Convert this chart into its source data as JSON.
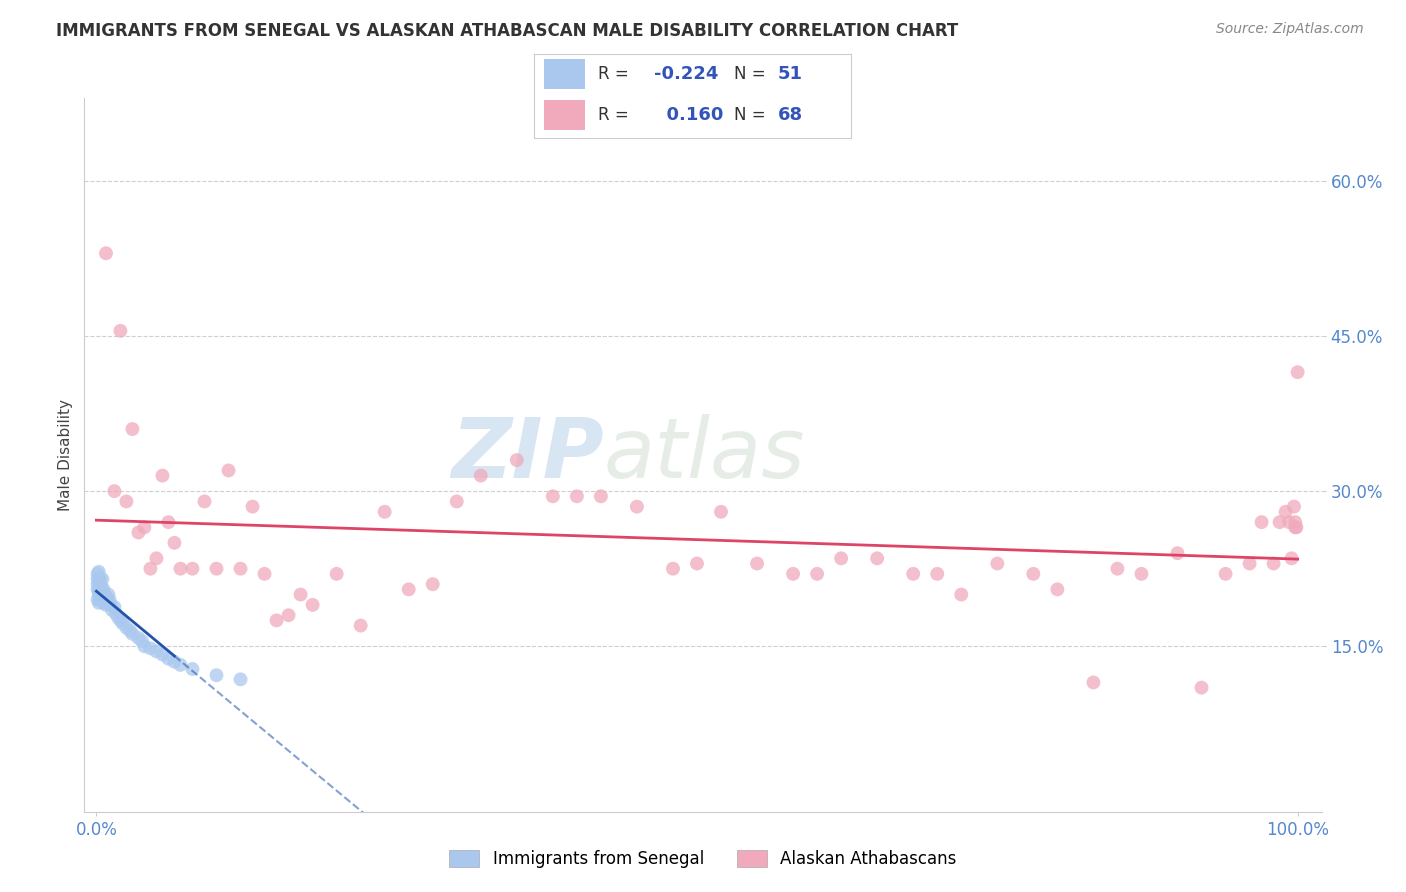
{
  "title": "IMMIGRANTS FROM SENEGAL VS ALASKAN ATHABASCAN MALE DISABILITY CORRELATION CHART",
  "source": "Source: ZipAtlas.com",
  "ylabel": "Male Disability",
  "legend_r_blue": "-0.224",
  "legend_n_blue": "51",
  "legend_r_pink": "0.160",
  "legend_n_pink": "68",
  "blue_color": "#aac8ee",
  "pink_color": "#f0aabb",
  "blue_line_color": "#2255aa",
  "pink_line_color": "#dd4466",
  "watermark_zip": "ZIP",
  "watermark_atlas": "atlas",
  "blue_scatter_x": [
    0.001,
    0.001,
    0.001,
    0.001,
    0.001,
    0.002,
    0.002,
    0.002,
    0.002,
    0.002,
    0.003,
    0.003,
    0.003,
    0.003,
    0.004,
    0.004,
    0.004,
    0.005,
    0.005,
    0.006,
    0.006,
    0.007,
    0.007,
    0.008,
    0.008,
    0.009,
    0.01,
    0.01,
    0.011,
    0.012,
    0.013,
    0.015,
    0.016,
    0.018,
    0.02,
    0.022,
    0.025,
    0.028,
    0.03,
    0.035,
    0.038,
    0.04,
    0.045,
    0.05,
    0.055,
    0.06,
    0.065,
    0.07,
    0.08,
    0.1,
    0.12
  ],
  "blue_scatter_y": [
    0.195,
    0.21,
    0.215,
    0.205,
    0.22,
    0.192,
    0.205,
    0.215,
    0.2,
    0.222,
    0.195,
    0.21,
    0.2,
    0.215,
    0.195,
    0.208,
    0.202,
    0.198,
    0.215,
    0.192,
    0.205,
    0.195,
    0.2,
    0.19,
    0.198,
    0.195,
    0.192,
    0.2,
    0.195,
    0.19,
    0.185,
    0.188,
    0.182,
    0.178,
    0.175,
    0.172,
    0.168,
    0.165,
    0.162,
    0.158,
    0.155,
    0.15,
    0.148,
    0.145,
    0.142,
    0.138,
    0.135,
    0.132,
    0.128,
    0.122,
    0.118
  ],
  "pink_scatter_x": [
    0.008,
    0.015,
    0.02,
    0.025,
    0.03,
    0.035,
    0.04,
    0.045,
    0.05,
    0.055,
    0.06,
    0.065,
    0.07,
    0.08,
    0.09,
    0.1,
    0.11,
    0.12,
    0.13,
    0.14,
    0.15,
    0.16,
    0.17,
    0.18,
    0.2,
    0.22,
    0.24,
    0.26,
    0.28,
    0.3,
    0.32,
    0.35,
    0.38,
    0.4,
    0.42,
    0.45,
    0.48,
    0.5,
    0.52,
    0.55,
    0.58,
    0.6,
    0.62,
    0.65,
    0.68,
    0.7,
    0.72,
    0.75,
    0.78,
    0.8,
    0.83,
    0.85,
    0.87,
    0.9,
    0.92,
    0.94,
    0.96,
    0.97,
    0.98,
    0.985,
    0.99,
    0.993,
    0.995,
    0.997,
    0.998,
    0.999,
    1.0,
    0.998
  ],
  "pink_scatter_y": [
    0.53,
    0.3,
    0.455,
    0.29,
    0.36,
    0.26,
    0.265,
    0.225,
    0.235,
    0.315,
    0.27,
    0.25,
    0.225,
    0.225,
    0.29,
    0.225,
    0.32,
    0.225,
    0.285,
    0.22,
    0.175,
    0.18,
    0.2,
    0.19,
    0.22,
    0.17,
    0.28,
    0.205,
    0.21,
    0.29,
    0.315,
    0.33,
    0.295,
    0.295,
    0.295,
    0.285,
    0.225,
    0.23,
    0.28,
    0.23,
    0.22,
    0.22,
    0.235,
    0.235,
    0.22,
    0.22,
    0.2,
    0.23,
    0.22,
    0.205,
    0.115,
    0.225,
    0.22,
    0.24,
    0.11,
    0.22,
    0.23,
    0.27,
    0.23,
    0.27,
    0.28,
    0.27,
    0.235,
    0.285,
    0.265,
    0.265,
    0.415,
    0.27
  ],
  "xlim": [
    -0.01,
    1.02
  ],
  "ylim": [
    -0.01,
    0.68
  ],
  "yticks": [
    0.15,
    0.3,
    0.45,
    0.6
  ],
  "ytick_labels": [
    "15.0%",
    "30.0%",
    "45.0%",
    "60.0%"
  ],
  "xticks": [
    0.0,
    1.0
  ],
  "xtick_labels": [
    "0.0%",
    "100.0%"
  ]
}
